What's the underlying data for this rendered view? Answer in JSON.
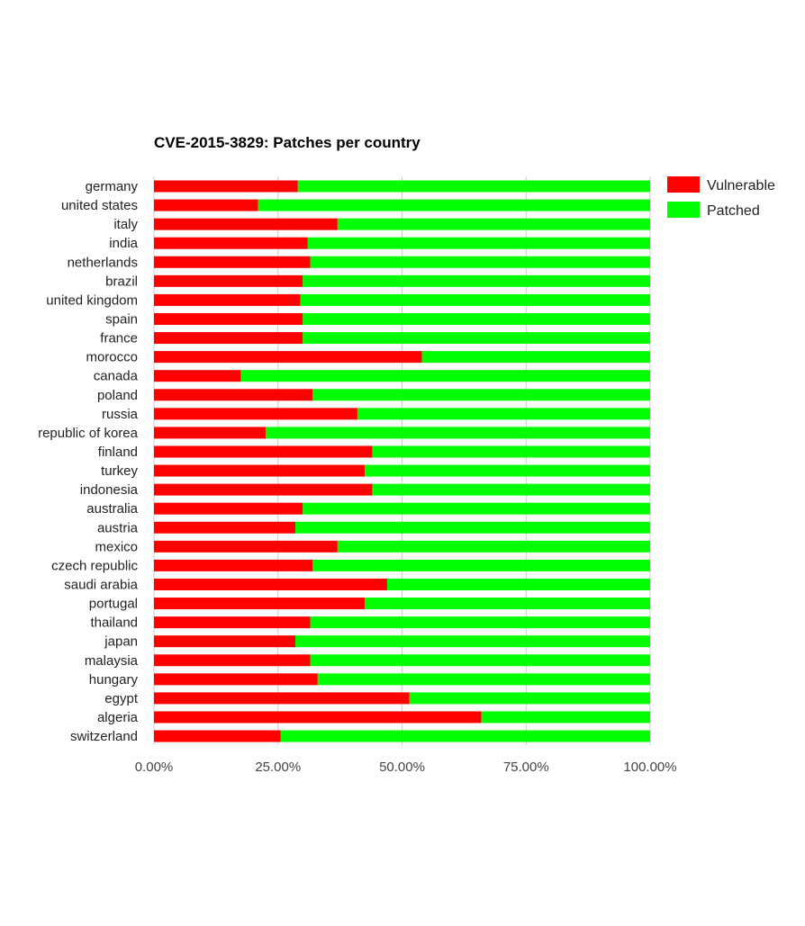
{
  "chart_data": {
    "type": "bar",
    "orientation": "horizontal",
    "stacked": true,
    "title": "CVE-2015-3829: Patches per country",
    "xlabel": "",
    "ylabel": "",
    "xlim": [
      0,
      100
    ],
    "x_ticks": [
      "0.00%",
      "25.00%",
      "50.00%",
      "75.00%",
      "100.00%"
    ],
    "grid": "vertical gridlines on",
    "legend_position": "top-right",
    "categories": [
      "germany",
      "united states",
      "italy",
      "india",
      "netherlands",
      "brazil",
      "united kingdom",
      "spain",
      "france",
      "morocco",
      "canada",
      "poland",
      "russia",
      "republic of korea",
      "finland",
      "turkey",
      "indonesia",
      "australia",
      "austria",
      "mexico",
      "czech republic",
      "saudi arabia",
      "portugal",
      "thailand",
      "japan",
      "malaysia",
      "hungary",
      "egypt",
      "algeria",
      "switzerland"
    ],
    "series": [
      {
        "name": "Vulnerable",
        "color": "#ff0000",
        "values": [
          29,
          21,
          37,
          31,
          31.5,
          30,
          29.5,
          30,
          30,
          54,
          17.5,
          32,
          41,
          22.5,
          44,
          42.5,
          44,
          30,
          28.5,
          37,
          32,
          47,
          42.5,
          31.5,
          28.5,
          31.5,
          33,
          51.5,
          66,
          25.5
        ]
      },
      {
        "name": "Patched",
        "color": "#00ff00",
        "values": [
          71,
          79,
          63,
          69,
          68.5,
          70,
          70.5,
          70,
          70,
          46,
          82.5,
          68,
          59,
          77.5,
          56,
          57.5,
          56,
          70,
          71.5,
          63,
          68,
          53,
          57.5,
          68.5,
          71.5,
          68.5,
          67,
          48.5,
          34,
          74.5
        ]
      }
    ]
  }
}
